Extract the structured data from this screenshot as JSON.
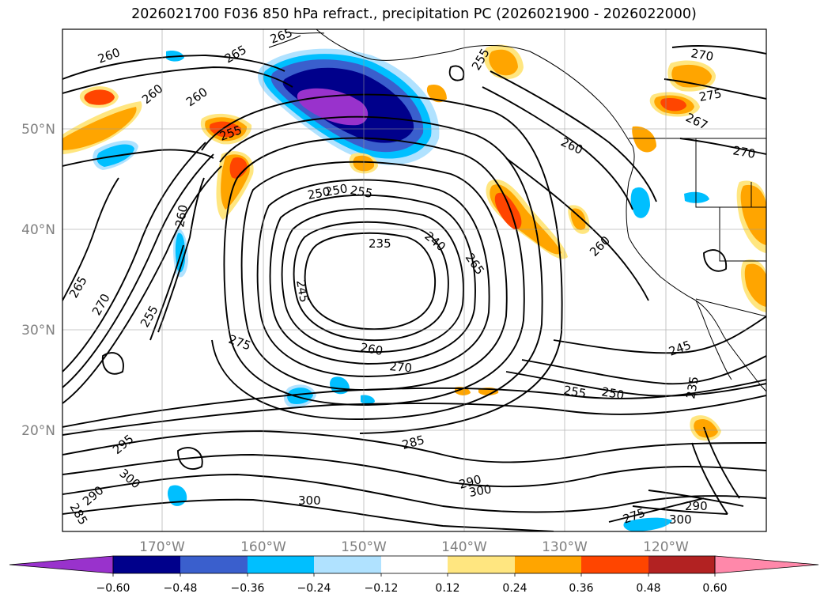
{
  "title": "2026021700 F036 850 hPa refract., precipitation PC (2026021900 - 2026022000)",
  "lat_labels": [
    "50°N",
    "40°N",
    "30°N",
    "20°N"
  ],
  "lon_labels": [
    "170°W",
    "160°W",
    "150°W",
    "140°W",
    "130°W",
    "120°W"
  ],
  "contour_labels": [
    "260",
    "265",
    "265",
    "260",
    "260",
    "255",
    "260",
    "250",
    "235",
    "240",
    "265",
    "245",
    "250",
    "255",
    "270",
    "275",
    "260",
    "270",
    "255",
    "250",
    "245",
    "235",
    "295",
    "300",
    "290",
    "285",
    "290",
    "285",
    "300",
    "300",
    "275",
    "290",
    "300",
    "260",
    "270",
    "267",
    "270",
    "275",
    "260",
    "255",
    "265",
    "255"
  ],
  "colorbar": {
    "ticks": [
      "−0.60",
      "−0.48",
      "−0.36",
      "−0.24",
      "−0.12",
      "0.12",
      "0.24",
      "0.36",
      "0.48",
      "0.60"
    ],
    "colors": [
      "#9932cc",
      "#00008b",
      "#3a5fcd",
      "#00bfff",
      "#b0e2ff",
      "#ffffff",
      "#ffe680",
      "#ffa500",
      "#ff4500",
      "#b22222",
      "#ff88aa"
    ]
  },
  "colors": {
    "purple": "#9932cc",
    "navy": "#00008b",
    "royal_blue": "#3a5fcd",
    "sky_blue": "#00bfff",
    "light_blue": "#b0e2ff",
    "pale_yellow": "#ffe680",
    "orange": "#ffa500",
    "orange_red": "#ff4500",
    "firebrick": "#b22222",
    "pink": "#ff88aa"
  }
}
